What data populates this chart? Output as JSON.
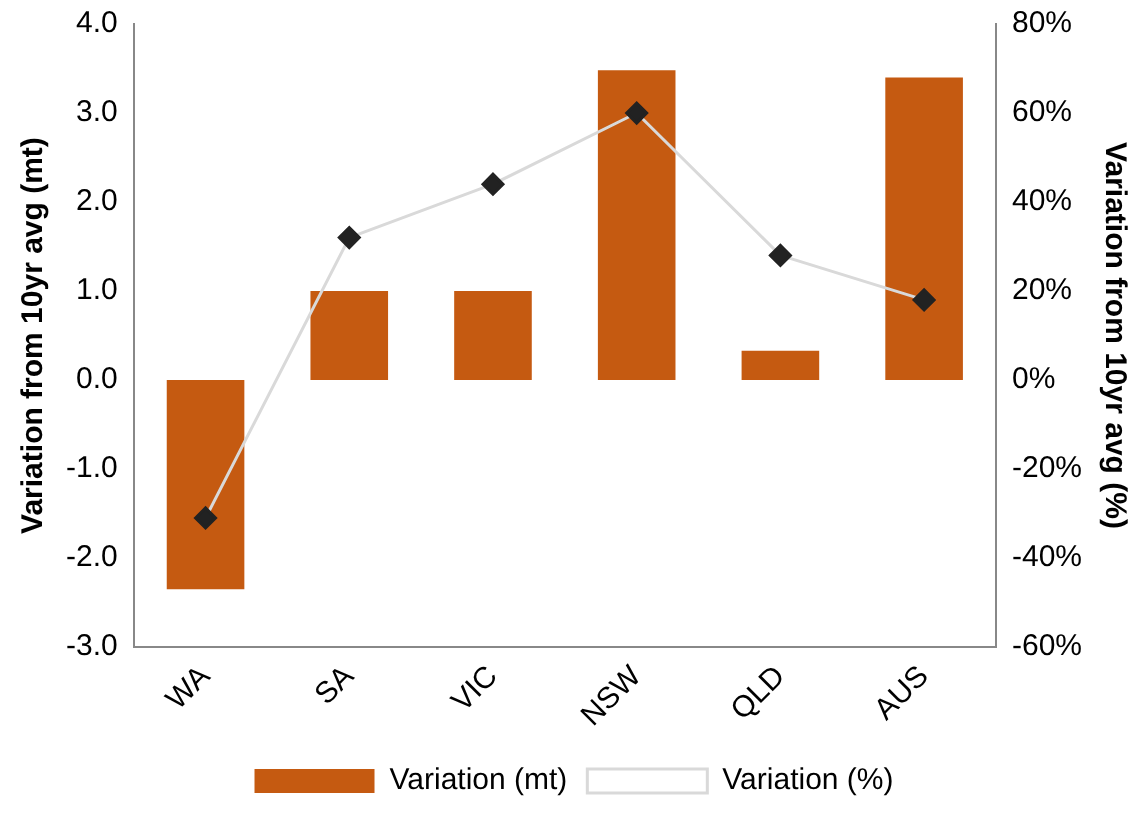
{
  "chart_data": {
    "type": "bar",
    "categories": [
      "WA",
      "SA",
      "VIC",
      "NSW",
      "QLD",
      "AUS"
    ],
    "ylabel": "Variation from 10yr avg (mt)",
    "y2label": "Variation from 10yr avg (%)",
    "series": [
      {
        "name": "Variation (mt)",
        "color": "#c55a11",
        "values": [
          -2.35,
          1.0,
          1.0,
          3.48,
          0.33,
          3.4
        ]
      },
      {
        "name": "Variation (%)",
        "type": "line",
        "axis": "y2",
        "color": "#d9d9d9",
        "marker": "diamond",
        "values": [
          -31,
          32,
          44,
          60,
          28,
          18
        ]
      }
    ],
    "ylim": [
      -3,
      4
    ],
    "yticks": [
      {
        "value": -3,
        "label": "-3.0"
      },
      {
        "value": -2,
        "label": "-2.0"
      },
      {
        "value": -1,
        "label": "-1.0"
      },
      {
        "value": 0,
        "label": "0.0"
      },
      {
        "value": 1,
        "label": "1.0"
      },
      {
        "value": 2,
        "label": "2.0"
      },
      {
        "value": 3,
        "label": "3.0"
      },
      {
        "value": 4,
        "label": "4.0"
      }
    ],
    "y2lim": [
      -60,
      80
    ],
    "y2ticks": [
      {
        "value": -60,
        "label": "-60%"
      },
      {
        "value": -40,
        "label": "-40%"
      },
      {
        "value": -20,
        "label": "-20%"
      },
      {
        "value": 0,
        "label": "0%"
      },
      {
        "value": 20,
        "label": "20%"
      },
      {
        "value": 40,
        "label": "40%"
      },
      {
        "value": 60,
        "label": "60%"
      },
      {
        "value": 80,
        "label": "80%"
      }
    ],
    "grid": false,
    "legend": "bottom"
  }
}
